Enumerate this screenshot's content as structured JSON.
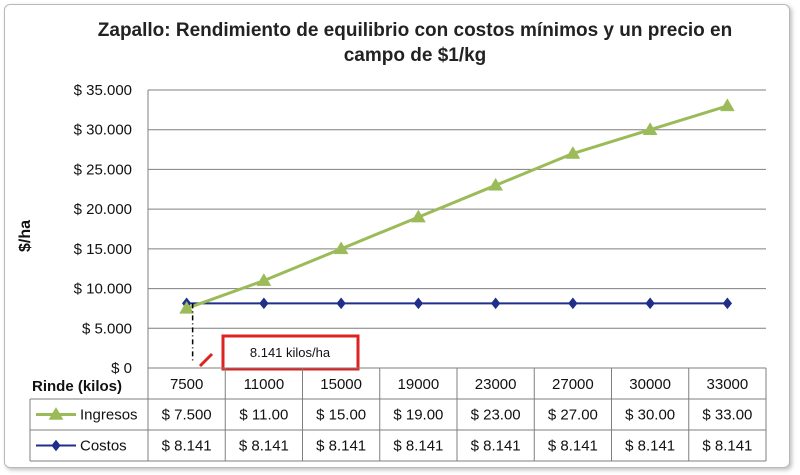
{
  "chart_data": {
    "type": "line",
    "title": "Zapallo: Rendimiento de equilibrio con costos mínimos y un precio en campo de $1/kg",
    "ylabel": "$/ha",
    "xlabel": "Rinde (kilos)",
    "categories": [
      "7500",
      "11000",
      "15000",
      "19000",
      "23000",
      "27000",
      "30000",
      "33000"
    ],
    "yticks": [
      "$ 35.000",
      "$ 30.000",
      "$ 25.000",
      "$ 20.000",
      "$ 15.000",
      "$ 10.000",
      "$ 5.000",
      "$ 0"
    ],
    "ylim": [
      0,
      35000
    ],
    "grid": true,
    "series": [
      {
        "name": "Ingresos",
        "color": "#9bbb59",
        "marker": "triangle",
        "values": [
          7500,
          11000,
          15000,
          19000,
          23000,
          27000,
          30000,
          33000
        ],
        "labels": [
          "$ 7.500",
          "$ 11.00",
          "$ 15.00",
          "$ 19.00",
          "$ 23.00",
          "$ 27.00",
          "$ 30.00",
          "$ 33.00"
        ]
      },
      {
        "name": "Costos",
        "color": "#1f2f8a",
        "marker": "diamond",
        "values": [
          8141,
          8141,
          8141,
          8141,
          8141,
          8141,
          8141,
          8141
        ],
        "labels": [
          "$ 8.141",
          "$ 8.141",
          "$ 8.141",
          "$ 8.141",
          "$ 8.141",
          "$ 8.141",
          "$ 8.141",
          "$ 8.141"
        ]
      }
    ],
    "annotation": {
      "text": "8.141 kilos/ha",
      "border_color": "#dd2222"
    }
  }
}
